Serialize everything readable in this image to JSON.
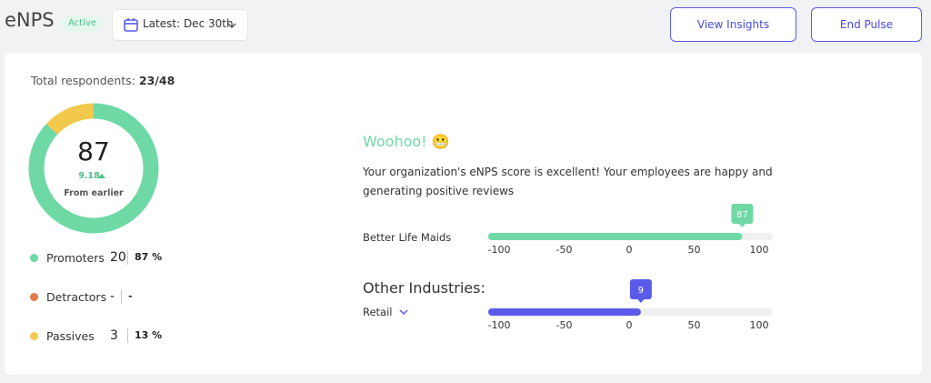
{
  "header": {
    "title": "eNPS",
    "status": "Active",
    "date_filter": "Latest: Dec 30th",
    "buttons": [
      "View Insights",
      "End Pulse"
    ]
  },
  "summary": {
    "respondents_label": "Total respondents:",
    "respondents": "23/48",
    "score": 87,
    "change": 9.18,
    "change_label": "From earlier",
    "legend": [
      {
        "name": "Promoters",
        "count": 20,
        "percent": "87 %",
        "color": "#6fd9a6"
      },
      {
        "name": "Detractors",
        "count": "-",
        "percent": "-",
        "color": "#e07a4a"
      },
      {
        "name": "Passives",
        "count": 3,
        "percent": "13 %",
        "color": "#f2c94c"
      }
    ]
  },
  "message": {
    "title": "Woohoo! 😬",
    "text": "Your organization's eNPS score is excellent! Your employees are happy and generating positive reviews"
  },
  "comparison": {
    "xlim": [
      -100,
      100
    ],
    "xticks": [
      -100,
      -50,
      0,
      50,
      100
    ],
    "other_label": "Other Industries:",
    "rows": [
      {
        "name": "Better Life Maids",
        "value": 87,
        "color": "#6fd9a6"
      },
      {
        "name": "Retail",
        "value": 9,
        "color": "#5b5bea"
      }
    ]
  }
}
